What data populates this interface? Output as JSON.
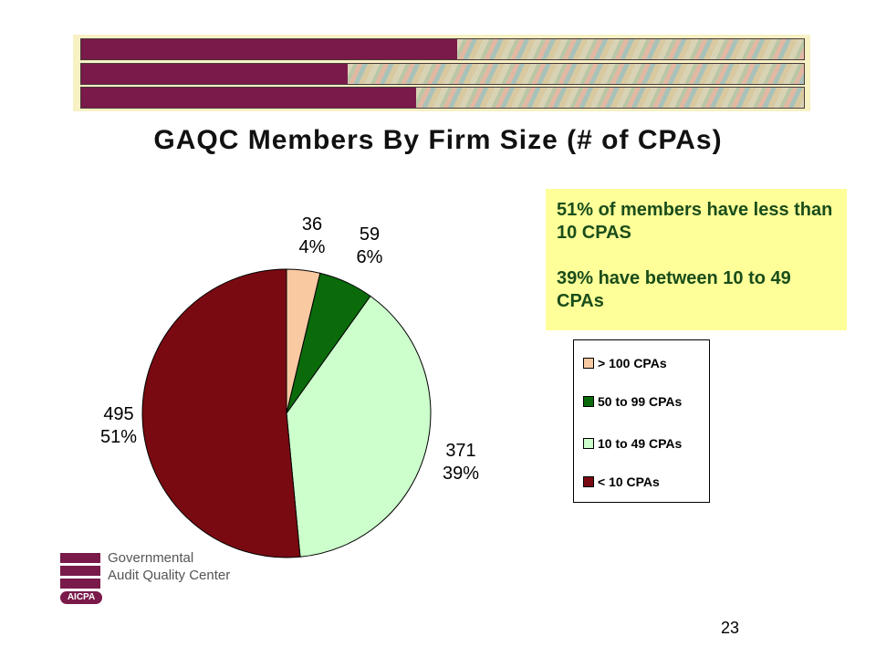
{
  "slide": {
    "title": "GAQC Members By Firm Size (# of CPAs)",
    "page_number": "23"
  },
  "callout": {
    "line1": "51% of members have less than 10 CPAS",
    "line2": "39% have between 10 to 49 CPAs"
  },
  "logo": {
    "line1": "Governmental",
    "line2": "Audit Quality Center",
    "badge": "AICPA"
  },
  "colors": {
    "brand": "#7a1a4a",
    "callout_bg": "#ffff99"
  },
  "chart_data": {
    "type": "pie",
    "title": "GAQC Members By Firm Size (# of CPAs)",
    "legend_position": "right",
    "series": [
      {
        "name": "> 100 CPAs",
        "value": 36,
        "percent": "4%",
        "color": "#f9c9a2"
      },
      {
        "name": "50 to 99 CPAs",
        "value": 59,
        "percent": "6%",
        "color": "#0b6b0b"
      },
      {
        "name": "10 to 49 CPAs",
        "value": 371,
        "percent": "39%",
        "color": "#ccffcc"
      },
      {
        "name": "< 10 CPAs",
        "value": 495,
        "percent": "51%",
        "color": "#7a0a12"
      }
    ]
  }
}
